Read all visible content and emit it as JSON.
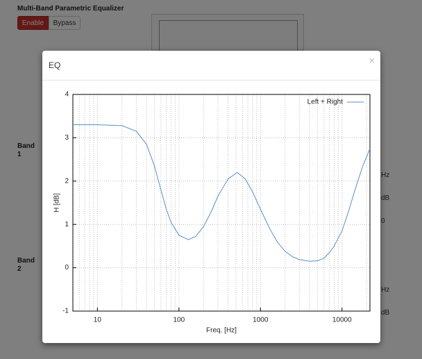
{
  "page": {
    "title": "Multi-Band Parametric Equalizer",
    "buttons": [
      "Enable",
      "Bypass"
    ],
    "bands": [
      "Band 1",
      "Band 2"
    ],
    "side_labels": [
      "Hz",
      "dB",
      "0",
      "Hz",
      "dB"
    ]
  },
  "modal": {
    "title": "EQ",
    "close": "×"
  },
  "chart_data": {
    "type": "line",
    "xlabel": "Freq. [Hz]",
    "ylabel": "H [dB]",
    "x": [
      5,
      10,
      20,
      30,
      40,
      50,
      60,
      70,
      80,
      100,
      130,
      160,
      200,
      250,
      300,
      400,
      520,
      650,
      800,
      1000,
      1300,
      1600,
      2000,
      2500,
      3000,
      4000,
      5000,
      6000,
      7000,
      8000,
      10000,
      12000,
      15000,
      18000,
      22000
    ],
    "series": [
      {
        "name": "Left + Right",
        "color": "#5b8fc7",
        "values": [
          3.3,
          3.3,
          3.28,
          3.15,
          2.85,
          2.35,
          1.8,
          1.35,
          1.05,
          0.75,
          0.65,
          0.72,
          0.95,
          1.3,
          1.65,
          2.05,
          2.2,
          2.05,
          1.75,
          1.35,
          0.9,
          0.6,
          0.38,
          0.25,
          0.19,
          0.15,
          0.16,
          0.22,
          0.35,
          0.5,
          0.85,
          1.3,
          1.9,
          2.35,
          2.75
        ]
      }
    ],
    "xlim": [
      5,
      22000
    ],
    "xticks": [
      10,
      100,
      1000,
      10000
    ],
    "xscale": "log",
    "ylim": [
      -1,
      4
    ],
    "yticks": [
      -1,
      0,
      1,
      2,
      3,
      4
    ],
    "grid": true,
    "minor_grid": true,
    "legend": "top-right"
  }
}
